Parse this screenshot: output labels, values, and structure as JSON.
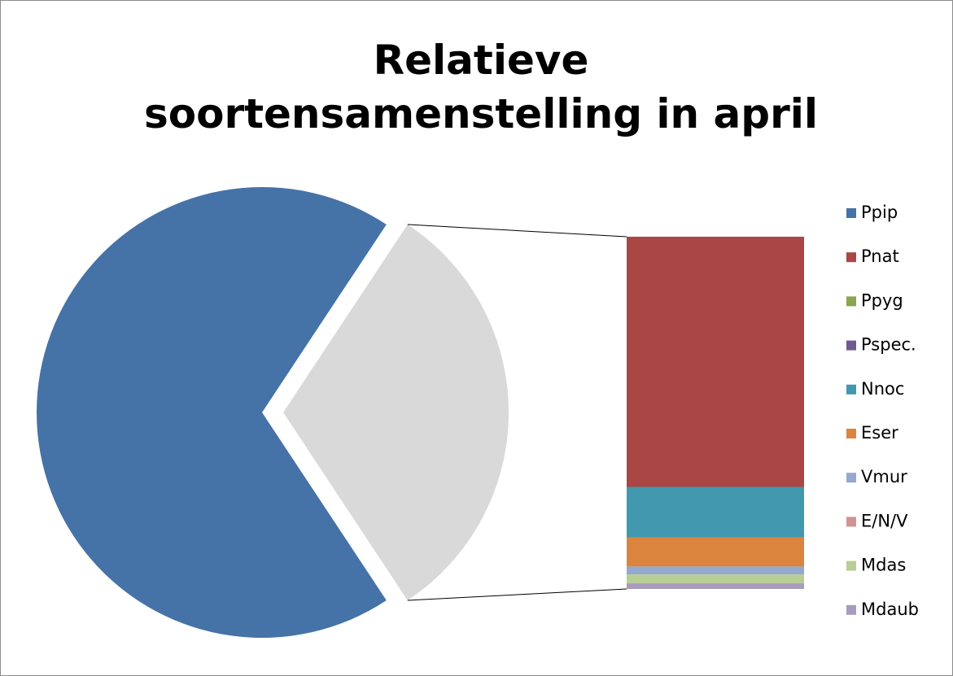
{
  "chart_data": {
    "type": "bar-of-pie",
    "title": "Relatieve soortensamenstelling in april",
    "categories": [
      "Ppip",
      "Pnat",
      "Ppyg",
      "Pspec.",
      "Nnoc",
      "Eser",
      "Vmur",
      "E/N/V",
      "Mdas",
      "Mdaub"
    ],
    "values": [
      68.6,
      22.3,
      0,
      0,
      4.5,
      2.6,
      0.7,
      0,
      0.8,
      0.5
    ],
    "colors": [
      "#4572a7",
      "#aa4643",
      "#89a54e",
      "#71588f",
      "#4198af",
      "#db843d",
      "#93a9cf",
      "#d19392",
      "#b9cd96",
      "#a99bbd"
    ],
    "other_color": "#d9d9d9",
    "legend": "right"
  }
}
